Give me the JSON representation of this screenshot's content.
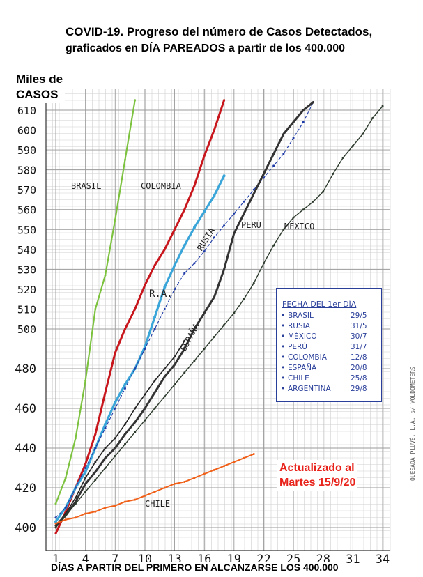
{
  "header": {
    "title_line1": "COVID-19. Progreso del número de Casos Detectados,",
    "title_line2": "graficados en DÍA PAREADOS a partir de los 400.000"
  },
  "axis": {
    "ylabel_line1": "Miles de",
    "ylabel_line2": "CASOS",
    "xlabel": "DÍAS A PARTIR DEL PRIMERO EN ALCANZARSE LOS 400.000"
  },
  "update_note": {
    "line1": "Actualizado al",
    "line2": "Martes 15/9/20"
  },
  "legend": {
    "heading": "FECHA DEL 1er DÍA",
    "rows": [
      {
        "name": "BRASIL",
        "date": "29/5"
      },
      {
        "name": "RUSIA",
        "date": "31/5"
      },
      {
        "name": "MÉXICO",
        "date": "30/7"
      },
      {
        "name": "PERÚ",
        "date": "31/7"
      },
      {
        "name": "COLOMBIA",
        "date": "12/8"
      },
      {
        "name": "ESPAÑA",
        "date": "20/8"
      },
      {
        "name": "CHILE",
        "date": "25/8"
      },
      {
        "name": "ARGENTINA",
        "date": "29/8"
      }
    ]
  },
  "credit": "QUESADA PLUVÉ, L.A. s/ WOLDOMETERS",
  "series_labels": {
    "brasil": "BRASIL",
    "colombia": "COLOMBIA",
    "ra": "R.A.",
    "rusia": "RUSIA",
    "espana": "ESPAÑA",
    "peru": "PERÚ",
    "mexico": "MÉXICO",
    "chile": "CHILE"
  },
  "chart_data": {
    "type": "line",
    "xlabel": "DÍAS A PARTIR DEL PRIMERO EN ALCANZARSE LOS 400.000",
    "ylabel": "Miles de CASOS",
    "x_ticks": [
      1,
      4,
      7,
      10,
      13,
      16,
      19,
      22,
      25,
      28,
      31,
      34
    ],
    "y_ticks": [
      400,
      420,
      440,
      460,
      480,
      500,
      510,
      520,
      530,
      540,
      550,
      560,
      570,
      580,
      590,
      600,
      610
    ],
    "ylim": [
      400,
      612
    ],
    "xlim": [
      0,
      35
    ],
    "grid": true,
    "colors": {
      "brasil": "#7cc23f",
      "colombia": "#c8161d",
      "ra": "#3aa5d8",
      "rusia": "#1e3aa6",
      "espana": "#222222",
      "peru": "#333333",
      "mexico": "#2c3a2c",
      "chile": "#f06018",
      "legend": "#2a3f9a",
      "update_note": "#e8231b"
    },
    "series": [
      {
        "name": "BRASIL",
        "key": "brasil",
        "x": [
          1,
          2,
          3,
          4,
          5,
          6,
          7,
          8,
          9
        ],
        "y": [
          412,
          425,
          445,
          474,
          510,
          527,
          555,
          585,
          615
        ]
      },
      {
        "name": "COLOMBIA",
        "key": "colombia",
        "x": [
          1,
          2,
          3,
          4,
          5,
          6,
          7,
          8,
          9,
          10,
          11,
          12,
          13,
          14,
          15,
          16,
          17,
          18
        ],
        "y": [
          397,
          408,
          420,
          432,
          447,
          468,
          488,
          500,
          510,
          522,
          532,
          540,
          550,
          560,
          572,
          587,
          600,
          615
        ]
      },
      {
        "name": "R.A.",
        "key": "ra",
        "x": [
          1,
          2,
          3,
          4,
          5,
          6,
          7,
          8,
          9,
          10,
          11,
          12,
          13,
          14,
          15,
          16,
          17,
          18
        ],
        "y": [
          403,
          410,
          420,
          428,
          440,
          452,
          463,
          472,
          480,
          491,
          506,
          521,
          532,
          542,
          551,
          559,
          567,
          577
        ]
      },
      {
        "name": "RUSIA",
        "key": "rusia",
        "x": [
          1,
          2,
          3,
          4,
          5,
          6,
          7,
          8,
          9,
          10,
          11,
          12,
          13,
          14,
          15,
          16,
          17,
          18,
          19,
          20,
          21,
          22,
          23,
          24,
          25,
          26,
          27
        ],
        "y": [
          405,
          410,
          420,
          430,
          440,
          450,
          460,
          470,
          480,
          490,
          500,
          510,
          520,
          528,
          533,
          539,
          546,
          552,
          558,
          564,
          570,
          576,
          582,
          588,
          596,
          604,
          614
        ]
      },
      {
        "name": "ESPAÑA",
        "key": "espana",
        "x": [
          1,
          2,
          3,
          4,
          5,
          6,
          7,
          8,
          9,
          10,
          11,
          12,
          13,
          14
        ],
        "y": [
          401,
          407,
          415,
          425,
          433,
          440,
          445,
          452,
          460,
          467,
          474,
          480,
          486,
          494
        ]
      },
      {
        "name": "PERÚ",
        "key": "peru",
        "x": [
          1,
          2,
          3,
          4,
          5,
          6,
          7,
          8,
          9,
          10,
          11,
          12,
          13,
          14,
          15,
          16,
          17,
          18,
          19,
          20,
          21,
          22,
          23,
          24,
          25,
          26,
          27
        ],
        "y": [
          401,
          406,
          413,
          422,
          428,
          435,
          440,
          447,
          453,
          460,
          468,
          476,
          482,
          490,
          500,
          508,
          516,
          530,
          548,
          558,
          568,
          578,
          588,
          598,
          604,
          610,
          614
        ]
      },
      {
        "name": "MÉXICO",
        "key": "mexico",
        "x": [
          1,
          2,
          3,
          4,
          5,
          6,
          7,
          8,
          9,
          10,
          11,
          12,
          13,
          14,
          15,
          16,
          17,
          18,
          19,
          20,
          21,
          22,
          23,
          24,
          25,
          26,
          27,
          28,
          29,
          30,
          31,
          32,
          33,
          34
        ],
        "y": [
          400,
          406,
          412,
          418,
          424,
          430,
          436,
          442,
          448,
          454,
          460,
          466,
          472,
          478,
          484,
          490,
          496,
          502,
          508,
          515,
          523,
          533,
          542,
          550,
          556,
          560,
          564,
          569,
          578,
          586,
          592,
          598,
          606,
          612
        ]
      },
      {
        "name": "CHILE",
        "key": "chile",
        "x": [
          1,
          2,
          3,
          4,
          5,
          6,
          7,
          8,
          9,
          10,
          11,
          12,
          13,
          14,
          15,
          16,
          17,
          18,
          19,
          20,
          21
        ],
        "y": [
          402,
          404,
          405,
          407,
          408,
          410,
          411,
          413,
          414,
          416,
          418,
          420,
          422,
          423,
          425,
          427,
          429,
          431,
          433,
          435,
          437
        ]
      }
    ]
  }
}
